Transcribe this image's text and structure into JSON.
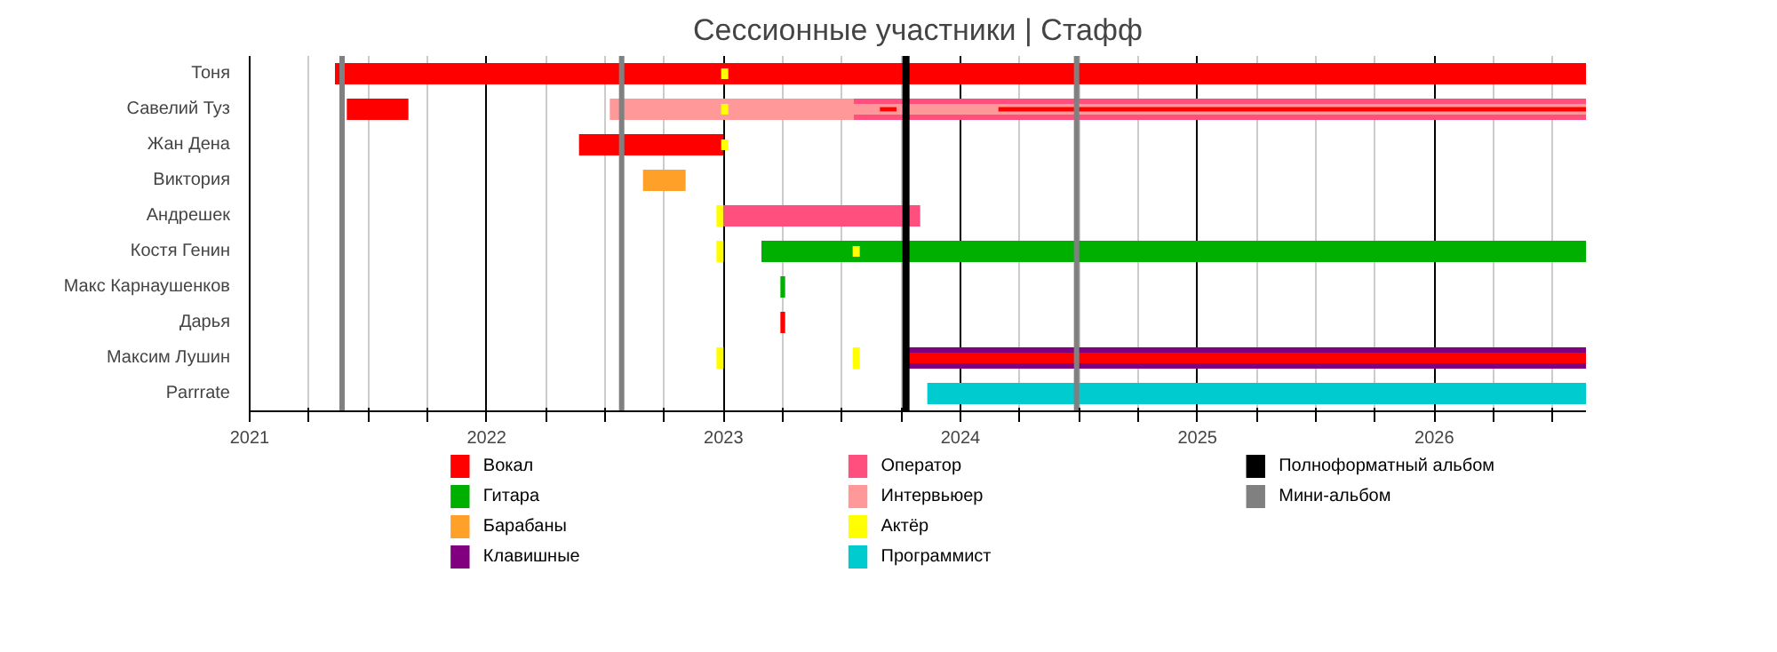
{
  "chart_data": {
    "type": "bar",
    "orientation": "horizontal",
    "title": "Сессионные участники | Стафф",
    "categories": [
      "Тоня",
      "Савелий Туз",
      "Жан Дена",
      "Виктория",
      "Андрешек",
      "Костя Генин",
      "Макс Карнаушенков",
      "Дарья",
      "Максим Лушин",
      "Parrrate"
    ],
    "xlim": [
      2021,
      2026.64
    ],
    "xticks": [
      2021,
      {
        "value": 2021.25,
        "label": null
      },
      {
        "value": 2021.5,
        "label": null
      },
      {
        "value": 2021.75,
        "label": null
      },
      2022,
      {
        "value": 2022.25,
        "label": null
      },
      {
        "value": 2022.5,
        "label": null
      },
      {
        "value": 2022.75,
        "label": null
      },
      2023,
      {
        "value": 2023.25,
        "label": null
      },
      {
        "value": 2023.5,
        "label": null
      },
      {
        "value": 2023.75,
        "label": null
      },
      2024,
      {
        "value": 2024.25,
        "label": null
      },
      {
        "value": 2024.5,
        "label": null
      },
      {
        "value": 2024.75,
        "label": null
      },
      2025,
      {
        "value": 2025.25,
        "label": null
      },
      {
        "value": 2025.5,
        "label": null
      },
      {
        "value": 2025.75,
        "label": null
      },
      2026,
      {
        "value": 2026.25,
        "label": null
      },
      {
        "value": 2026.5,
        "label": null
      }
    ],
    "grid": true,
    "legend": "bottom",
    "series": [
      {
        "name": "Вокал",
        "color": "#ff0000",
        "base": [
          2021.36,
          2021.41,
          2022.39,
          null,
          null,
          null,
          null,
          2023.24,
          null,
          null
        ],
        "values": [
          5.28,
          0.26,
          0.61,
          null,
          null,
          null,
          null,
          0.02,
          null,
          null
        ]
      },
      {
        "name": "Гитара",
        "color": "#00b000",
        "base": [
          null,
          null,
          null,
          null,
          null,
          2023.16,
          2023.24,
          null,
          null,
          null
        ],
        "values": [
          null,
          null,
          null,
          null,
          null,
          3.48,
          0.02,
          null,
          null,
          null
        ]
      },
      {
        "name": "Барабаны",
        "color": "#ffa028",
        "base": [
          null,
          null,
          null,
          2022.66,
          null,
          null,
          null,
          null,
          null,
          null
        ],
        "values": [
          null,
          null,
          null,
          0.18,
          null,
          null,
          null,
          null,
          null,
          null
        ]
      },
      {
        "name": "Клавишные",
        "color": "#800080",
        "base": [
          null,
          null,
          null,
          null,
          null,
          null,
          null,
          null,
          2023.77,
          null
        ],
        "values": [
          null,
          null,
          null,
          null,
          null,
          null,
          null,
          null,
          2.87,
          null
        ]
      },
      {
        "name": "Оператор",
        "color": "#ff4f7f",
        "base": [
          null,
          2023.55,
          null,
          null,
          2023.0,
          null,
          null,
          null,
          null,
          null
        ],
        "values": [
          null,
          3.09,
          null,
          null,
          0.83,
          null,
          null,
          null,
          null,
          null
        ]
      },
      {
        "name": "Интервьюер",
        "color": "#ff9999",
        "base": [
          null,
          2022.52,
          null,
          null,
          null,
          null,
          null,
          null,
          null,
          null
        ],
        "values": [
          null,
          1.03,
          null,
          null,
          null,
          null,
          null,
          null,
          null,
          null
        ]
      },
      {
        "name": "Актёр",
        "color": "#ffff00",
        "base": [
          2022.99,
          2022.99,
          2022.99,
          null,
          2022.97,
          2022.97,
          null,
          null,
          2022.97,
          null
        ],
        "values": [
          0.03,
          0.03,
          0.03,
          null,
          0.03,
          0.03,
          null,
          null,
          0.03,
          null
        ]
      },
      {
        "name": "Программист",
        "color": "#00ccd0",
        "base": [
          null,
          null,
          null,
          null,
          null,
          null,
          null,
          null,
          null,
          2023.86
        ],
        "values": [
          null,
          null,
          null,
          null,
          null,
          null,
          null,
          null,
          null,
          2.78
        ]
      },
      {
        "color": "#ff9999",
        "base": [
          null,
          2023.55,
          null,
          null,
          null,
          null,
          null,
          null,
          null,
          null
        ],
        "values": [
          null,
          3.09,
          null,
          null,
          null,
          null,
          null,
          null,
          null,
          null
        ]
      },
      {
        "color": "#ff0000",
        "base": [
          null,
          2023.66,
          null,
          null,
          null,
          null,
          null,
          null,
          2023.77,
          null
        ],
        "values": [
          null,
          0.07,
          null,
          null,
          null,
          null,
          null,
          null,
          2.87,
          null
        ]
      },
      {
        "color": "#ff0000",
        "base": [
          null,
          2024.16,
          null,
          null,
          null,
          null,
          null,
          null,
          null,
          null
        ],
        "values": [
          null,
          2.48,
          null,
          null,
          null,
          null,
          null,
          null,
          null,
          null
        ]
      },
      {
        "color": "#ffff00",
        "base": [
          null,
          null,
          null,
          null,
          null,
          2023.545,
          null,
          null,
          2023.545,
          null
        ],
        "values": [
          null,
          null,
          null,
          null,
          null,
          0.03,
          null,
          null,
          0.03,
          null
        ]
      }
    ],
    "ref_lines": [
      {
        "axis": "x",
        "value": 2023.77,
        "label": "Полноформатный альбом",
        "color": "#000000"
      },
      {
        "axis": "x",
        "value": 2021.39,
        "label": "Мини-альбом",
        "color": "#808080"
      },
      {
        "axis": "x",
        "value": 2022.57,
        "color": "#808080"
      },
      {
        "axis": "x",
        "value": 2024.49,
        "color": "#808080"
      }
    ]
  }
}
